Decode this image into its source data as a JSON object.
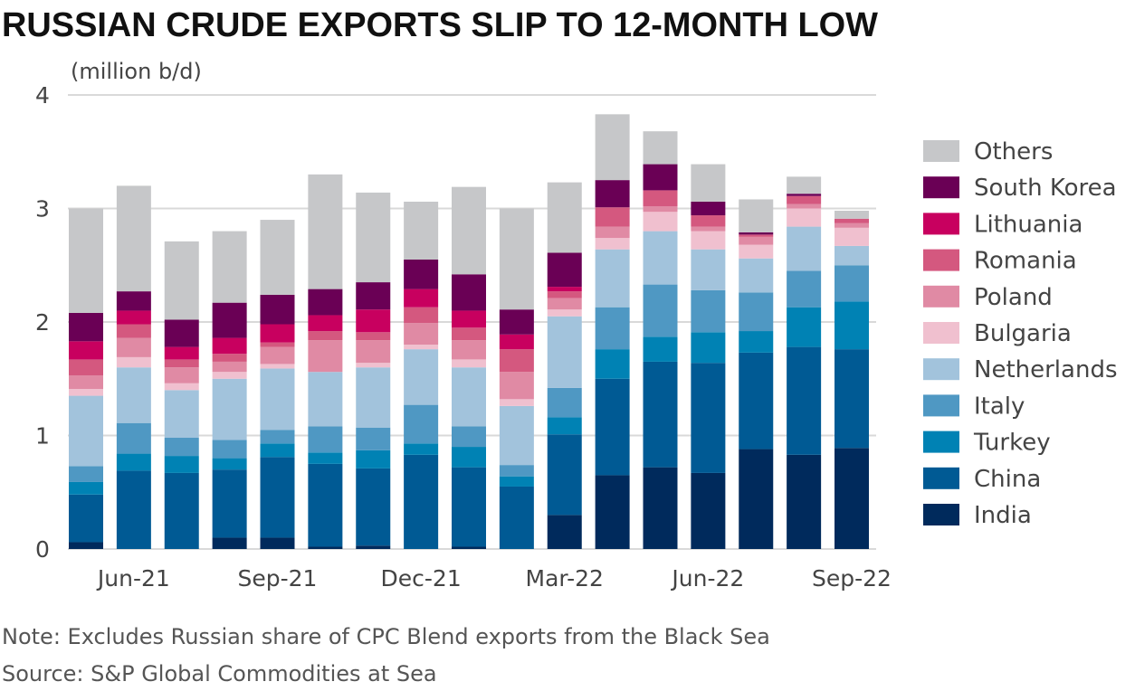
{
  "chart_data": {
    "type": "bar",
    "stacked": true,
    "title": "RUSSIAN CRUDE EXPORTS SLIP TO 12-MONTH LOW",
    "ylabel": "(million b/d)",
    "ylim": [
      0,
      4
    ],
    "yticks": [
      "0",
      "1",
      "2",
      "3",
      "4"
    ],
    "grid": true,
    "legend_position": "right",
    "categories": [
      "May-21",
      "Jun-21",
      "Jul-21",
      "Aug-21",
      "Sep-21",
      "Oct-21",
      "Nov-21",
      "Dec-21",
      "Jan-22",
      "Feb-22",
      "Mar-22",
      "Apr-22",
      "May-22",
      "Jun-22",
      "Jul-22",
      "Aug-22",
      "Sep-22"
    ],
    "xtick_labels": [
      "Jun-21",
      "Sep-21",
      "Dec-21",
      "Mar-22",
      "Jun-22",
      "Sep-22"
    ],
    "series": [
      {
        "name": "India",
        "color": "#002a5c",
        "values": [
          0.06,
          0,
          0,
          0.1,
          0.1,
          0.02,
          0.03,
          0,
          0.02,
          0,
          0.3,
          0.65,
          0.72,
          0.67,
          0.88,
          0.83,
          0.89
        ]
      },
      {
        "name": "China",
        "color": "#005a94",
        "values": [
          0.42,
          0.69,
          0.67,
          0.6,
          0.71,
          0.73,
          0.68,
          0.83,
          0.7,
          0.55,
          0.71,
          0.85,
          0.93,
          0.97,
          0.85,
          0.95,
          0.87
        ]
      },
      {
        "name": "Turkey",
        "color": "#0082b4",
        "values": [
          0.11,
          0.15,
          0.15,
          0.1,
          0.12,
          0.1,
          0.16,
          0.1,
          0.18,
          0.09,
          0.15,
          0.26,
          0.22,
          0.27,
          0.19,
          0.35,
          0.42
        ]
      },
      {
        "name": "Italy",
        "color": "#4f98c3",
        "values": [
          0.14,
          0.27,
          0.16,
          0.16,
          0.12,
          0.23,
          0.2,
          0.34,
          0.18,
          0.1,
          0.26,
          0.37,
          0.46,
          0.37,
          0.34,
          0.32,
          0.32
        ]
      },
      {
        "name": "Netherlands",
        "color": "#a2c3dc",
        "values": [
          0.62,
          0.49,
          0.42,
          0.54,
          0.54,
          0.48,
          0.53,
          0.49,
          0.52,
          0.52,
          0.63,
          0.51,
          0.47,
          0.36,
          0.3,
          0.39,
          0.17
        ]
      },
      {
        "name": "Bulgaria",
        "color": "#f0c0cf",
        "values": [
          0.06,
          0.09,
          0.06,
          0.06,
          0.04,
          0,
          0.04,
          0.04,
          0.07,
          0.06,
          0.06,
          0.1,
          0.17,
          0.16,
          0.12,
          0.16,
          0.16
        ]
      },
      {
        "name": "Poland",
        "color": "#e08aa4",
        "values": [
          0.12,
          0.17,
          0.14,
          0.09,
          0.15,
          0.28,
          0.2,
          0.19,
          0.17,
          0.24,
          0.1,
          0.1,
          0.05,
          0.04,
          0.07,
          0.04,
          0.04
        ]
      },
      {
        "name": "Romania",
        "color": "#d4587f",
        "values": [
          0.14,
          0.12,
          0.07,
          0.07,
          0.04,
          0.08,
          0.07,
          0.14,
          0.11,
          0.2,
          0.06,
          0.17,
          0.14,
          0.1,
          0.02,
          0.07,
          0.04
        ]
      },
      {
        "name": "Lithuania",
        "color": "#c8005f",
        "values": [
          0.16,
          0.12,
          0.11,
          0.14,
          0.16,
          0.14,
          0.2,
          0.16,
          0.15,
          0.13,
          0.04,
          0,
          0,
          0,
          0,
          0,
          0
        ]
      },
      {
        "name": "South Korea",
        "color": "#6a0055",
        "values": [
          0.25,
          0.17,
          0.24,
          0.31,
          0.26,
          0.23,
          0.24,
          0.26,
          0.32,
          0.22,
          0.3,
          0.24,
          0.23,
          0.12,
          0.02,
          0.02,
          0
        ]
      },
      {
        "name": "Others",
        "color": "#c6c7c9",
        "values": [
          0.92,
          0.93,
          0.69,
          0.63,
          0.66,
          1.01,
          0.79,
          0.51,
          0.77,
          0.89,
          0.62,
          0.58,
          0.29,
          0.33,
          0.29,
          0.15,
          0.07
        ]
      }
    ]
  },
  "notes": {
    "note": "Note: Excludes Russian share of CPC Blend exports from the Black Sea",
    "source": "Source: S&P Global Commodities at Sea"
  }
}
